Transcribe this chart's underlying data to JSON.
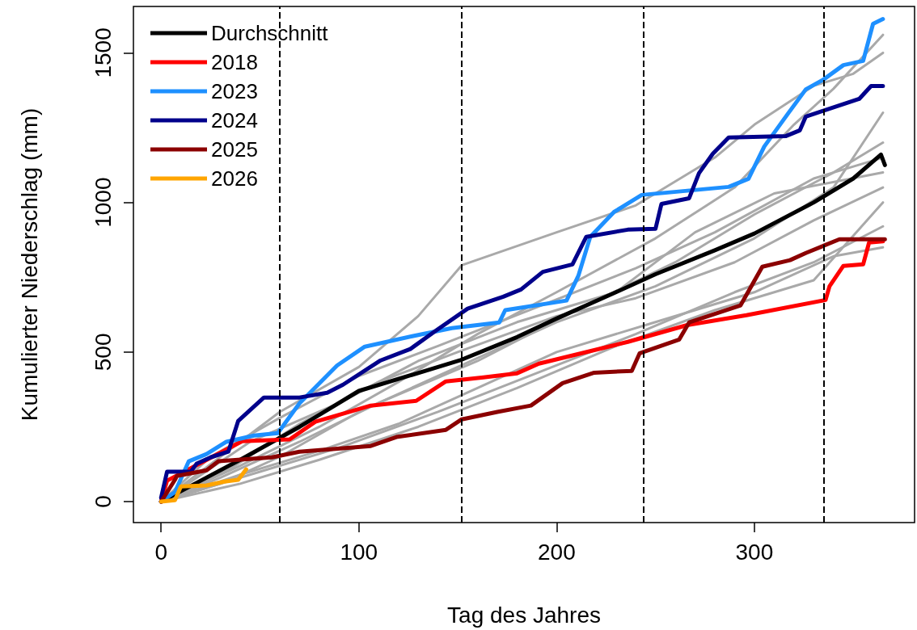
{
  "chart_data": {
    "type": "line",
    "xlabel": "Tag des Jahres",
    "ylabel": "Kumulierter Niederschlag (mm)",
    "xlim": [
      -14,
      381
    ],
    "ylim": [
      -70,
      1655
    ],
    "xticks": [
      0,
      100,
      200,
      300
    ],
    "yticks": [
      0,
      500,
      1000,
      1500
    ],
    "grid": false,
    "legend": "top left",
    "marker": "none",
    "line_style": "solid",
    "ref_lines": [
      {
        "axis": "x",
        "value": 60,
        "line_style": "dashed",
        "color": "#000000"
      },
      {
        "axis": "x",
        "value": 152,
        "line_style": "dashed",
        "color": "#000000"
      },
      {
        "axis": "x",
        "value": 244,
        "line_style": "dashed",
        "color": "#000000"
      },
      {
        "axis": "x",
        "value": 335,
        "line_style": "dashed",
        "color": "#000000"
      }
    ],
    "series": [
      {
        "color": "#a9a9a9",
        "x": [
          0,
          20,
          40,
          60,
          100,
          130,
          152,
          200,
          240,
          280,
          300,
          330,
          350,
          365
        ],
        "values": [
          0,
          100,
          200,
          300,
          450,
          620,
          790,
          900,
          990,
          1150,
          1260,
          1390,
          1430,
          1500
        ]
      },
      {
        "color": "#a9a9a9",
        "x": [
          0,
          40,
          80,
          120,
          160,
          200,
          250,
          290,
          320,
          340,
          365
        ],
        "values": [
          0,
          120,
          250,
          400,
          560,
          700,
          880,
          1050,
          1260,
          1380,
          1560
        ]
      },
      {
        "color": "#a9a9a9",
        "x": [
          0,
          30,
          60,
          100,
          150,
          200,
          250,
          300,
          340,
          365
        ],
        "values": [
          0,
          60,
          150,
          300,
          450,
          600,
          720,
          880,
          1050,
          1300
        ]
      },
      {
        "color": "#a9a9a9",
        "x": [
          0,
          40,
          80,
          120,
          160,
          200,
          250,
          300,
          340,
          365
        ],
        "values": [
          0,
          90,
          170,
          260,
          380,
          500,
          600,
          700,
          820,
          850
        ]
      },
      {
        "color": "#a9a9a9",
        "x": [
          0,
          30,
          70,
          110,
          160,
          210,
          260,
          300,
          340,
          365
        ],
        "values": [
          0,
          80,
          200,
          330,
          470,
          640,
          800,
          960,
          1100,
          1200
        ]
      },
      {
        "color": "#a9a9a9",
        "x": [
          0,
          35,
          70,
          110,
          150,
          200,
          240,
          290,
          330,
          365
        ],
        "values": [
          0,
          110,
          260,
          400,
          500,
          620,
          680,
          800,
          940,
          1050
        ]
      },
      {
        "color": "#a9a9a9",
        "x": [
          0,
          20,
          50,
          90,
          140,
          190,
          240,
          290,
          330,
          365
        ],
        "values": [
          0,
          40,
          100,
          180,
          300,
          430,
          560,
          700,
          800,
          920
        ]
      },
      {
        "color": "#a9a9a9",
        "x": [
          0,
          25,
          60,
          100,
          140,
          190,
          240,
          280,
          330,
          365
        ],
        "values": [
          0,
          150,
          280,
          420,
          520,
          650,
          780,
          900,
          1080,
          1150
        ]
      },
      {
        "color": "#a9a9a9",
        "x": [
          0,
          45,
          90,
          130,
          180,
          230,
          270,
          310,
          365
        ],
        "values": [
          0,
          200,
          330,
          470,
          600,
          700,
          900,
          1030,
          1100
        ]
      },
      {
        "color": "#a9a9a9",
        "x": [
          0,
          40,
          80,
          130,
          180,
          230,
          280,
          330,
          365
        ],
        "values": [
          0,
          60,
          140,
          250,
          380,
          520,
          640,
          740,
          1000
        ]
      },
      {
        "name": "Durchschnitt",
        "color": "#000000",
        "x": [
          0,
          20,
          40,
          70,
          100,
          130,
          151,
          180,
          200,
          230,
          250,
          280,
          300,
          330,
          350,
          364,
          366
        ],
        "values": [
          0,
          70,
          140,
          250,
          370,
          430,
          472,
          550,
          612,
          700,
          760,
          840,
          896,
          1000,
          1080,
          1160,
          1125
        ]
      },
      {
        "name": "2018",
        "color": "#ff0000",
        "x": [
          0,
          3,
          41,
          65,
          78,
          106,
          129,
          144,
          163,
          180,
          191,
          236,
          266,
          296,
          336,
          338,
          345,
          355,
          358,
          365
        ],
        "values": [
          0,
          70,
          202,
          208,
          267,
          321,
          337,
          402,
          415,
          429,
          461,
          534,
          590,
          623,
          674,
          720,
          788,
          793,
          866,
          870
        ]
      },
      {
        "name": "2023",
        "color": "#1e90ff",
        "x": [
          0,
          7,
          14,
          23,
          33,
          47,
          59,
          70,
          89,
          103,
          127,
          147,
          171,
          174,
          205,
          211,
          217,
          229,
          243,
          287,
          297,
          305,
          317,
          326,
          335,
          345,
          355,
          360,
          365
        ],
        "values": [
          0,
          32,
          135,
          159,
          200,
          221,
          229,
          329,
          455,
          518,
          553,
          580,
          599,
          640,
          672,
          755,
          885,
          968,
          1025,
          1052,
          1079,
          1187,
          1297,
          1378,
          1411,
          1459,
          1473,
          1597,
          1613
        ]
      },
      {
        "name": "2024",
        "color": "#00008b",
        "x": [
          0,
          3,
          15,
          18,
          25,
          34,
          39,
          52,
          70,
          84,
          92,
          111,
          126,
          139,
          155,
          173,
          182,
          193,
          208,
          215,
          236,
          250,
          253,
          267,
          272,
          279,
          287,
          316,
          323,
          326,
          337,
          353,
          359,
          365
        ],
        "values": [
          13,
          100,
          100,
          127,
          148,
          167,
          270,
          348,
          348,
          364,
          391,
          472,
          510,
          572,
          645,
          685,
          709,
          768,
          793,
          885,
          909,
          912,
          995,
          1014,
          1098,
          1163,
          1217,
          1222,
          1241,
          1287,
          1311,
          1346,
          1389,
          1389
        ]
      },
      {
        "name": "2025",
        "color": "#8b0000",
        "x": [
          0,
          7,
          8,
          23,
          29,
          56,
          70,
          106,
          119,
          144,
          152,
          170,
          187,
          203,
          219,
          238,
          242,
          262,
          267,
          293,
          304,
          318,
          326,
          343,
          366
        ],
        "values": [
          0,
          73,
          86,
          105,
          135,
          148,
          167,
          186,
          216,
          240,
          275,
          300,
          321,
          396,
          431,
          437,
          496,
          542,
          599,
          656,
          785,
          807,
          831,
          877,
          877
        ]
      },
      {
        "name": "2026",
        "color": "#ffa500",
        "x": [
          0,
          7,
          10,
          23,
          32,
          39,
          43
        ],
        "values": [
          0,
          5,
          51,
          54,
          67,
          73,
          108
        ]
      }
    ]
  }
}
